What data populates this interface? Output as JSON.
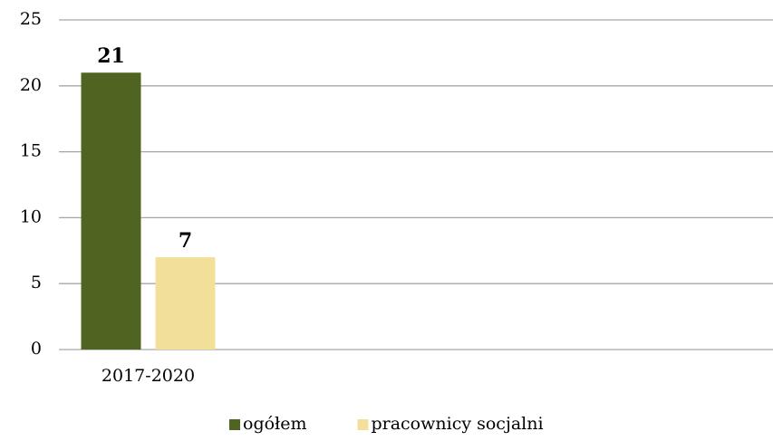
{
  "chart_data": {
    "type": "bar",
    "categories": [
      "2017-2020",
      null,
      null,
      null
    ],
    "series": [
      {
        "name": "ogółem",
        "color": "#4e6420",
        "values": [
          21,
          null,
          null,
          null
        ]
      },
      {
        "name": "pracownicy socjalni",
        "color": "#f2df9a",
        "values": [
          7,
          null,
          null,
          null
        ]
      }
    ],
    "ylim": [
      0,
      25
    ],
    "yticks": [
      0,
      5,
      10,
      15,
      20,
      25
    ],
    "grid": true,
    "legend": "bottom"
  }
}
